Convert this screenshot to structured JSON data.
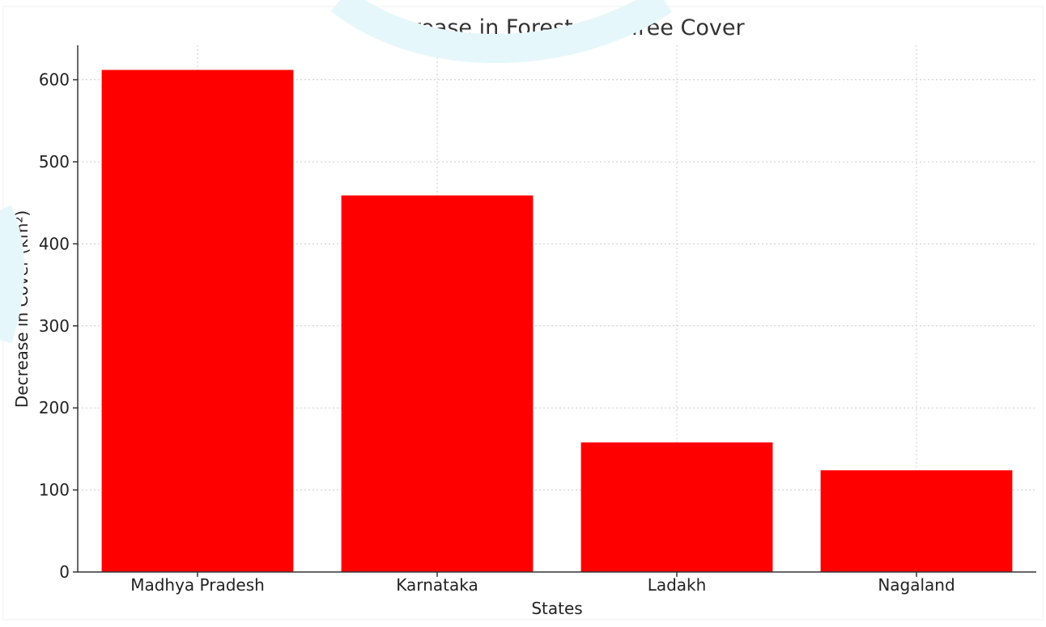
{
  "chart_data": {
    "type": "bar",
    "title": "Decrease in Forest and Tree Cover",
    "xlabel": "States",
    "ylabel": "Decrease in Cover (km²)",
    "categories": [
      "Madhya Pradesh",
      "Karnataka",
      "Ladakh",
      "Nagaland"
    ],
    "values": [
      612,
      459,
      158,
      124
    ],
    "ylim": [
      0,
      642
    ],
    "yticks": [
      0,
      100,
      200,
      300,
      400,
      500,
      600
    ],
    "grid": true,
    "legend": "none"
  },
  "colors": {
    "bar": "#ff0000",
    "grid": "#cccccc",
    "axis": "#333333",
    "watermark": "#e6f7fb"
  }
}
